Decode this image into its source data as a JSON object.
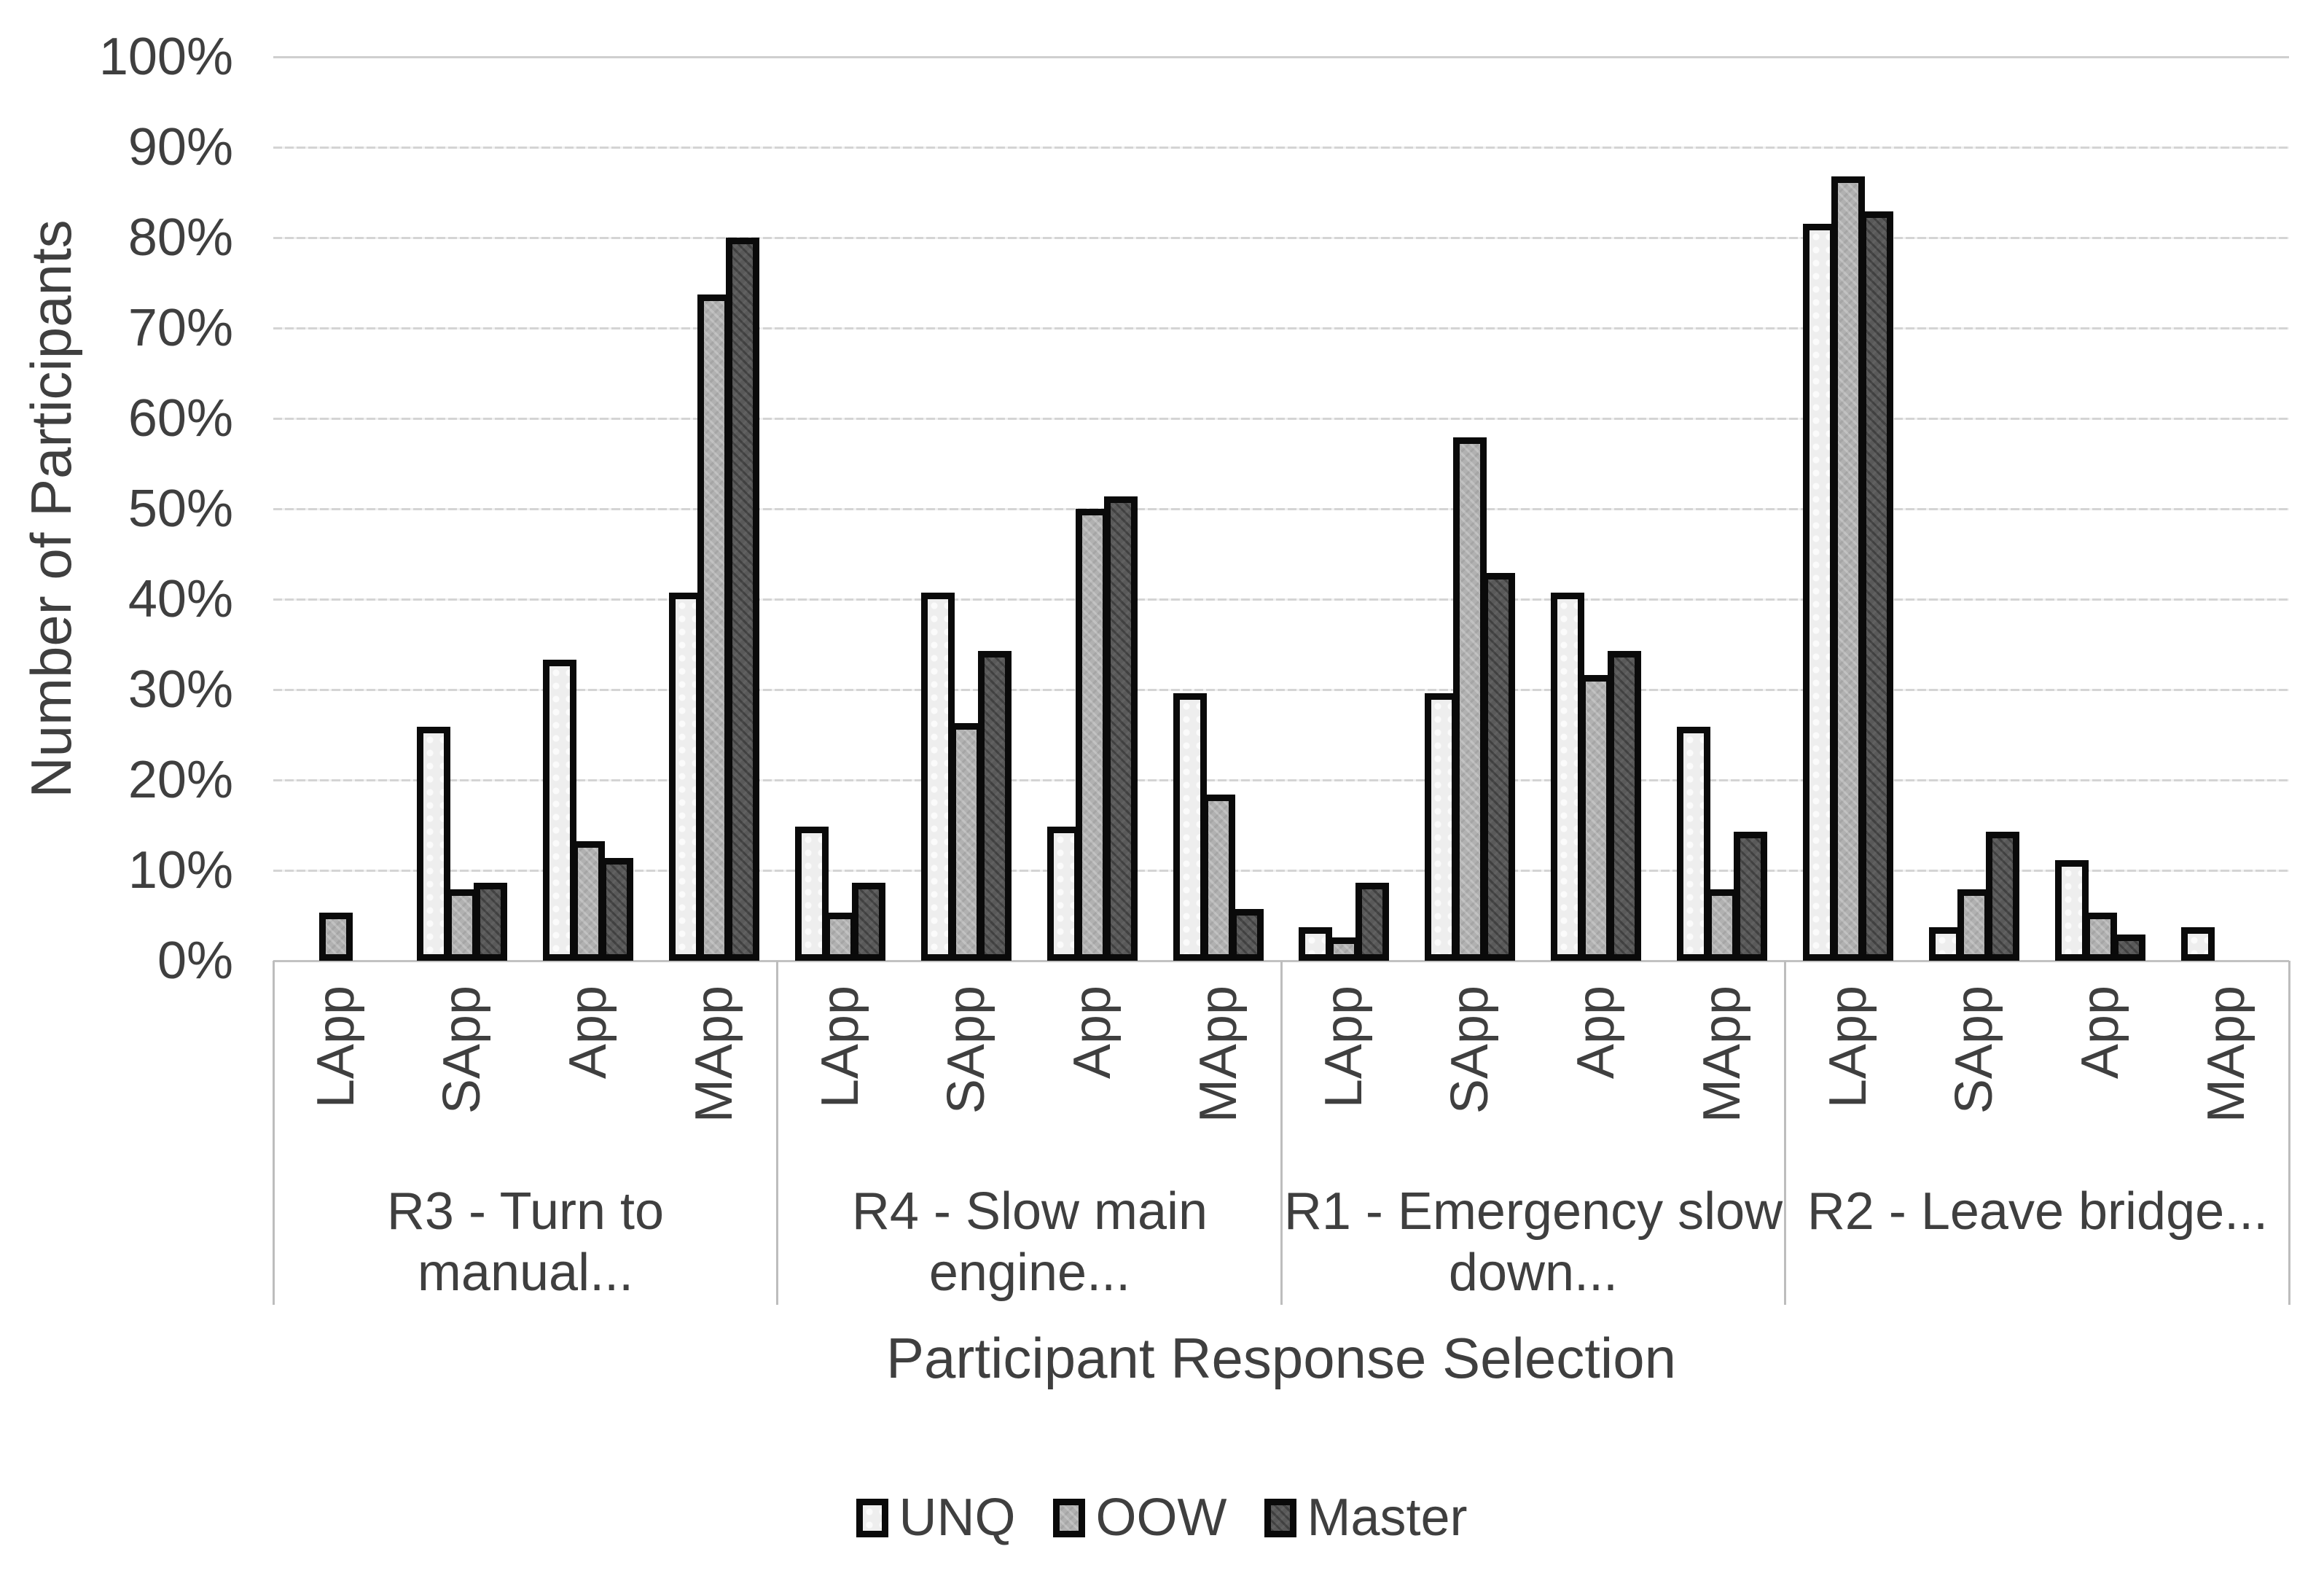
{
  "chart_data": {
    "type": "bar",
    "title": "",
    "xlabel": "Participant Response Selection",
    "ylabel": "Number of Participants",
    "ylim": [
      0,
      100
    ],
    "ytick_step": 10,
    "yticks": [
      "0%",
      "10%",
      "20%",
      "30%",
      "40%",
      "50%",
      "60%",
      "70%",
      "80%",
      "90%",
      "100%"
    ],
    "grid": "horizontal",
    "legend_position": "bottom",
    "subcategories": [
      "LApp",
      "SApp",
      "App",
      "MApp"
    ],
    "groups": [
      {
        "label": "R3 - Turn to manual...",
        "label_lines": [
          "R3 - Turn to manual..."
        ]
      },
      {
        "label": "R4 - Slow main engine...",
        "label_lines": [
          "R4 - Slow main",
          "engine..."
        ]
      },
      {
        "label": "R1 - Emergency slow down...",
        "label_lines": [
          "R1 - Emergency slow",
          "down..."
        ]
      },
      {
        "label": "R2 - Leave bridge...",
        "label_lines": [
          "R2 - Leave bridge..."
        ]
      }
    ],
    "series": [
      {
        "name": "UNQ",
        "fill": "#eeeeee",
        "pattern": "fill-unq",
        "values_by_group": [
          [
            0,
            25.9,
            33.3,
            40.7
          ],
          [
            14.8,
            40.7,
            14.8,
            29.6
          ],
          [
            3.7,
            29.6,
            40.7,
            25.9
          ],
          [
            81.5,
            3.7,
            11.1,
            3.7
          ]
        ]
      },
      {
        "name": "OOW",
        "fill": "#b1b1b1",
        "pattern": "fill-oow",
        "values_by_group": [
          [
            5.3,
            7.9,
            13.2,
            73.7
          ],
          [
            5.3,
            26.3,
            50.0,
            18.4
          ],
          [
            2.6,
            57.9,
            31.6,
            7.9
          ],
          [
            86.8,
            7.9,
            5.3,
            0
          ]
        ]
      },
      {
        "name": "Master",
        "fill": "#595959",
        "pattern": "fill-master",
        "values_by_group": [
          [
            0,
            8.6,
            11.4,
            80.0
          ],
          [
            8.6,
            34.3,
            51.4,
            5.7
          ],
          [
            8.6,
            42.9,
            34.3,
            14.3
          ],
          [
            82.9,
            14.3,
            2.9,
            0
          ]
        ]
      }
    ],
    "bar_border_color": "#0a0a0a",
    "gridline_color": "#d4d4d4",
    "axis_line_color": "#c2c2c2",
    "separator_color": "#bdbdbd",
    "text_color": "#3f3f3f"
  }
}
